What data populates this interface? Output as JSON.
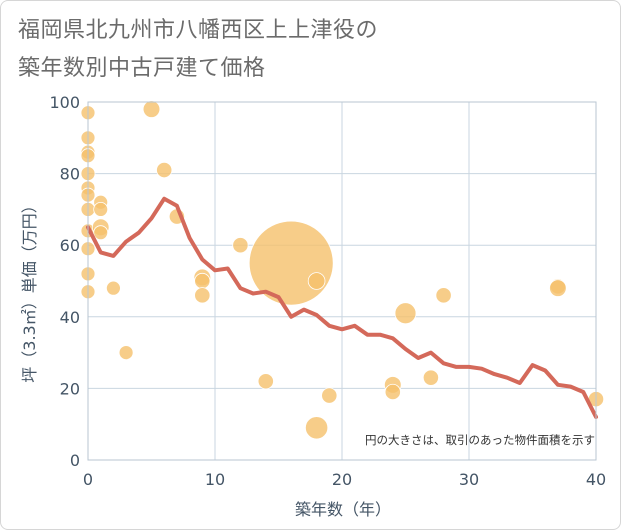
{
  "title_line1": "福岡県北九州市八幡西区上上津役の",
  "title_line2": "築年数別中古戸建て価格",
  "chart_data": {
    "type": "scatter",
    "xlabel": "築年数（年）",
    "ylabel": "坪（3.3㎡）単価（万円）",
    "xlim": [
      0,
      40
    ],
    "ylim": [
      0,
      100
    ],
    "x_ticks": [
      "0",
      "10",
      "20",
      "30",
      "40"
    ],
    "y_ticks": [
      "0",
      "20",
      "40",
      "60",
      "80",
      "100"
    ],
    "grid": true,
    "note": "円の大きさは、取引のあった物件面積を示す",
    "colors": {
      "bubble": "#f5c16c",
      "line": "#d4695a",
      "grid": "#c9d6e0"
    },
    "bubbles": [
      {
        "x": 0,
        "y": 97,
        "s": 1
      },
      {
        "x": 0,
        "y": 90,
        "s": 1
      },
      {
        "x": 0,
        "y": 86,
        "s": 1
      },
      {
        "x": 0,
        "y": 85,
        "s": 1
      },
      {
        "x": 0,
        "y": 80,
        "s": 1
      },
      {
        "x": 0,
        "y": 76,
        "s": 1
      },
      {
        "x": 0,
        "y": 74,
        "s": 1
      },
      {
        "x": 0,
        "y": 70,
        "s": 1
      },
      {
        "x": 0,
        "y": 64,
        "s": 1
      },
      {
        "x": 0,
        "y": 59,
        "s": 1
      },
      {
        "x": 0,
        "y": 52,
        "s": 1
      },
      {
        "x": 0,
        "y": 47,
        "s": 1
      },
      {
        "x": 1,
        "y": 72,
        "s": 1
      },
      {
        "x": 1,
        "y": 70,
        "s": 1
      },
      {
        "x": 1,
        "y": 65,
        "s": 1.2
      },
      {
        "x": 1,
        "y": 63.5,
        "s": 1
      },
      {
        "x": 2,
        "y": 48,
        "s": 1
      },
      {
        "x": 3,
        "y": 30,
        "s": 1
      },
      {
        "x": 5,
        "y": 98,
        "s": 1.2
      },
      {
        "x": 6,
        "y": 81,
        "s": 1.1
      },
      {
        "x": 7,
        "y": 68,
        "s": 1.1
      },
      {
        "x": 9,
        "y": 51,
        "s": 1.2
      },
      {
        "x": 9,
        "y": 50,
        "s": 1.1
      },
      {
        "x": 9,
        "y": 46,
        "s": 1.1
      },
      {
        "x": 12,
        "y": 60,
        "s": 1.1
      },
      {
        "x": 14,
        "y": 22,
        "s": 1.1
      },
      {
        "x": 16,
        "y": 55,
        "s": 6
      },
      {
        "x": 18,
        "y": 50,
        "s": 1.2
      },
      {
        "x": 18,
        "y": 9,
        "s": 1.6
      },
      {
        "x": 19,
        "y": 18,
        "s": 1.1
      },
      {
        "x": 24,
        "y": 21,
        "s": 1.2
      },
      {
        "x": 24,
        "y": 19,
        "s": 1.1
      },
      {
        "x": 25,
        "y": 41,
        "s": 1.5
      },
      {
        "x": 27,
        "y": 23,
        "s": 1.1
      },
      {
        "x": 28,
        "y": 46,
        "s": 1.1
      },
      {
        "x": 37,
        "y": 48.5,
        "s": 1.1
      },
      {
        "x": 37,
        "y": 48,
        "s": 1.2
      },
      {
        "x": 40,
        "y": 17,
        "s": 1.1
      }
    ],
    "trend": {
      "x": [
        0,
        1,
        2,
        3,
        4,
        5,
        6,
        7,
        8,
        9,
        10,
        11,
        12,
        13,
        14,
        15,
        16,
        17,
        18,
        19,
        20,
        21,
        22,
        23,
        24,
        25,
        26,
        27,
        28,
        29,
        30,
        31,
        32,
        33,
        34,
        35,
        36,
        37,
        38,
        39,
        40
      ],
      "y": [
        65,
        58,
        57,
        61,
        63.5,
        67.5,
        73,
        71,
        62,
        56,
        53,
        53.5,
        48,
        46.5,
        47,
        45.5,
        40,
        42,
        40.5,
        37.5,
        36.5,
        37.5,
        35,
        35,
        34,
        31,
        28.5,
        30,
        27,
        26,
        26,
        25.5,
        24,
        23,
        21.5,
        26.5,
        25,
        21,
        20.5,
        19,
        12
      ]
    }
  }
}
